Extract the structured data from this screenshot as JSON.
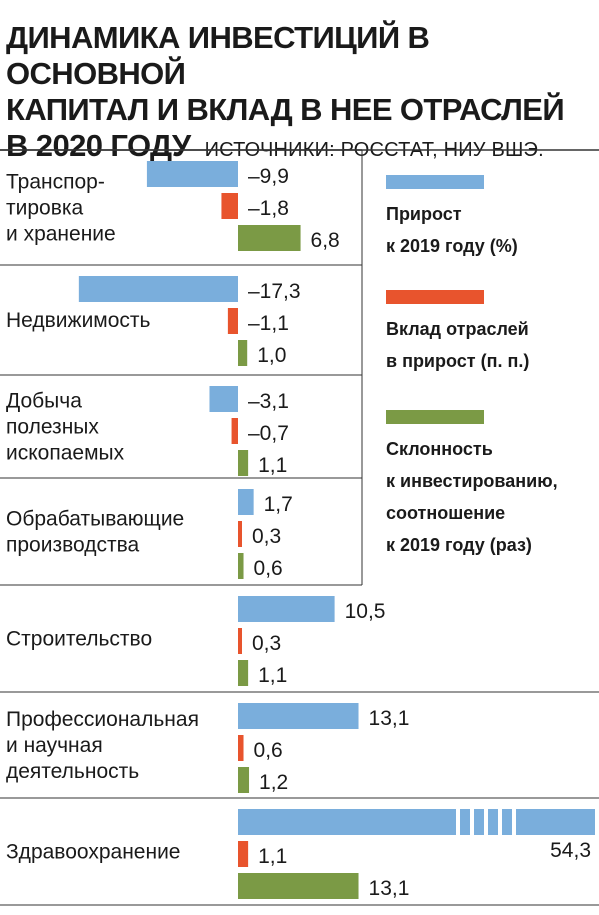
{
  "title": {
    "main_lines": [
      "ДИНАМИКА ИНВЕСТИЦИЙ В ОСНОВНОЙ",
      "КАПИТАЛ И ВКЛАД В НЕЕ ОТРАСЛЕЙ",
      "В 2020 ГОДУ"
    ],
    "source": "ИСТОЧНИКИ: РОССТАТ, НИУ ВШЭ."
  },
  "colors": {
    "growth": "#7aaedc",
    "contribution": "#e8542d",
    "propensity": "#7b9a45",
    "divider": "#333333"
  },
  "chart_data": {
    "type": "bar",
    "orientation": "horizontal",
    "categories": [
      [
        "Транспор-",
        "тировка",
        "и хранение"
      ],
      [
        "Недвижимость"
      ],
      [
        "Добыча",
        "полезных",
        "ископаемых"
      ],
      [
        "Обрабатывающие",
        "производства"
      ],
      [
        "Строительство"
      ],
      [
        "Профессиональная",
        "и научная",
        "деятельность"
      ],
      [
        "Здравоохранение"
      ]
    ],
    "series": [
      {
        "name": [
          "Прирост",
          "к 2019 году (%)"
        ],
        "values": [
          -9.9,
          -17.3,
          -3.1,
          1.7,
          10.5,
          13.1,
          54.3
        ],
        "labels": [
          "–9,9",
          "–17,3",
          "–3,1",
          "1,7",
          "10,5",
          "13,1",
          "54,3"
        ],
        "broken_axis": [
          false,
          false,
          false,
          false,
          false,
          false,
          true
        ]
      },
      {
        "name": [
          "Вклад отраслей",
          "в прирост (п. п.)"
        ],
        "values": [
          -1.8,
          -1.1,
          -0.7,
          0.3,
          0.3,
          0.6,
          1.1
        ],
        "labels": [
          "–1,8",
          "–1,1",
          "–0,7",
          "0,3",
          "0,3",
          "0,6",
          "1,1"
        ]
      },
      {
        "name": [
          "Склонность",
          "к инвестированию,",
          "соотношение",
          "к 2019 году (раз)"
        ],
        "values": [
          6.8,
          1.0,
          1.1,
          0.6,
          1.1,
          1.2,
          13.1
        ],
        "labels": [
          "6,8",
          "1,0",
          "1,1",
          "0,6",
          "1,1",
          "1,2",
          "13,1"
        ]
      }
    ],
    "legend_position": "right",
    "grid": false
  }
}
